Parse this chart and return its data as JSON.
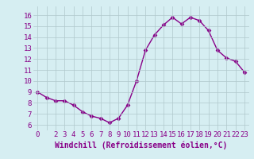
{
  "x": [
    0,
    1,
    2,
    3,
    4,
    5,
    6,
    7,
    8,
    9,
    10,
    11,
    12,
    13,
    14,
    15,
    16,
    17,
    18,
    19,
    20,
    21,
    22,
    23
  ],
  "y": [
    9.0,
    8.5,
    8.2,
    8.2,
    7.8,
    7.2,
    6.8,
    6.6,
    6.2,
    6.6,
    7.8,
    10.0,
    12.8,
    14.2,
    15.1,
    15.8,
    15.2,
    15.8,
    15.5,
    14.6,
    12.8,
    12.1,
    11.8,
    10.8
  ],
  "line_color": "#880088",
  "marker": "D",
  "markersize": 2.5,
  "linewidth": 1.0,
  "xlabel": "Windchill (Refroidissement éolien,°C)",
  "xlabel_fontsize": 7,
  "xlabel_color": "#880088",
  "ylabel_ticks": [
    6,
    7,
    8,
    9,
    10,
    11,
    12,
    13,
    14,
    15,
    16
  ],
  "xtick_labels": [
    "0",
    "",
    "2",
    "3",
    "4",
    "5",
    "6",
    "7",
    "8",
    "9",
    "10",
    "11",
    "12",
    "13",
    "14",
    "15",
    "16",
    "17",
    "18",
    "19",
    "20",
    "21",
    "22",
    "23"
  ],
  "ylim": [
    5.5,
    16.8
  ],
  "xlim": [
    -0.5,
    23.5
  ],
  "bg_color": "#d6eef2",
  "grid_color": "#b0c8cc",
  "tick_fontsize": 6.5
}
